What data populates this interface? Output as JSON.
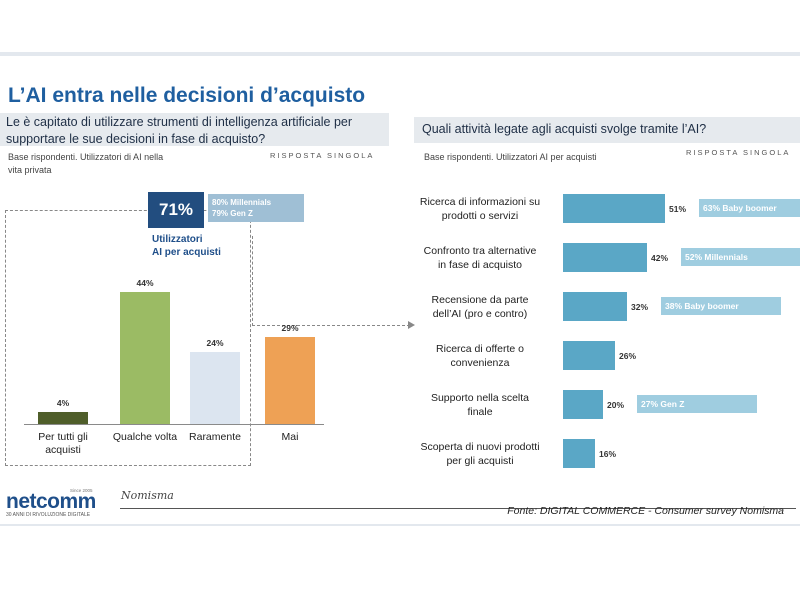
{
  "title": "L’AI entra nelle decisioni d’acquisto",
  "left_panel": {
    "question_line1": "Le è capitato di utilizzare strumenti di intelligenza artificiale per",
    "question_line2": "supportare le sue decisioni in fase di acquisto?",
    "base_line1": "Base rispondenti. Utilizzatori di AI nella",
    "base_line2": "vita privata",
    "response_type": "RISPOSTA SINGOLA",
    "highlight_value": "71%",
    "highlight_label_line1": "Utilizzatori",
    "highlight_label_line2": "AI per acquisti",
    "generations": [
      "80% Millennials",
      "79% Gen Z"
    ]
  },
  "right_panel": {
    "question": "Quali attività legate agli acquisti svolge tramite l’AI?",
    "base": "Base rispondenti. Utilizzatori AI per acquisti",
    "response_type": "RISPOSTA SINGOLA"
  },
  "chart_data": [
    {
      "type": "bar",
      "orientation": "vertical",
      "categories": [
        [
          "Per tutti gli",
          "acquisti"
        ],
        [
          "Qualche volta"
        ],
        [
          "Raramente"
        ],
        [
          "Mai"
        ]
      ],
      "values": [
        4,
        44,
        24,
        29
      ],
      "value_labels": [
        "4%",
        "44%",
        "24%",
        "29%"
      ],
      "colors": [
        "#4f5e2a",
        "#9bbb64",
        "#dce5f0",
        "#eea155"
      ]
    },
    {
      "type": "bar",
      "orientation": "horizontal",
      "categories": [
        [
          "Ricerca di informazioni su",
          "prodotti o servizi"
        ],
        [
          "Confronto tra alternative",
          "in fase di acquisto"
        ],
        [
          "Recensione da parte",
          "dell’AI (pro e contro)"
        ],
        [
          "Ricerca di offerte o",
          "convenienza"
        ],
        [
          "Supporto nella scelta",
          "finale"
        ],
        [
          "Scoperta di nuovi prodotti",
          "per gli acquisti"
        ]
      ],
      "values": [
        51,
        42,
        32,
        26,
        20,
        16
      ],
      "value_labels": [
        "51%",
        "42%",
        "32%",
        "26%",
        "20%",
        "16%"
      ],
      "annotations": [
        "63% Baby boomer",
        "52% Millennials",
        "38% Baby boomer",
        "",
        "27% Gen Z",
        ""
      ],
      "color": "#5aa7c6"
    }
  ],
  "footer": {
    "logo_text": "netcomm",
    "logo_tagline": "30 ANNI DI RIVOLUZIONE DIGITALE",
    "logo_since": "Since 2005",
    "partner": "Nomisma",
    "source": "Fonte: DIGITAL COMMERCE - Consumer survey Nomisma"
  }
}
